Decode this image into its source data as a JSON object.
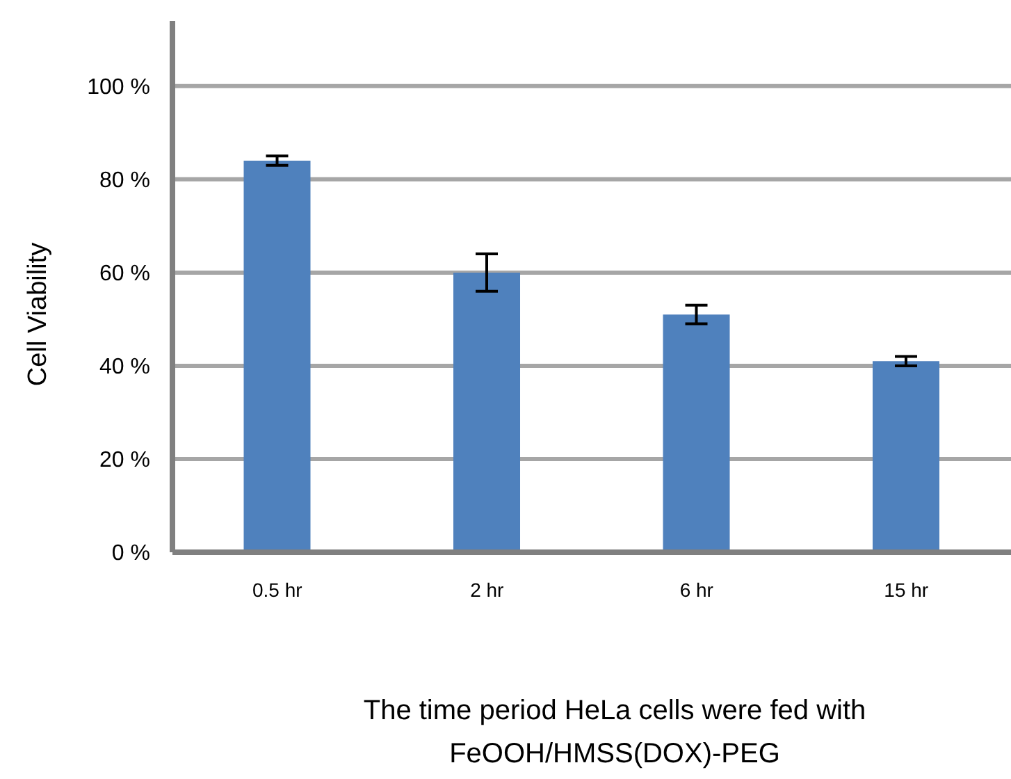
{
  "chart_data": {
    "type": "bar",
    "xlabel": "The time period HeLa cells were fed with\nFeOOH/HMSS(DOX)-PEG",
    "ylabel": "Cell Viability",
    "categories": [
      "0.5 hr",
      "2 hr",
      "6 hr",
      "15 hr"
    ],
    "values": [
      84,
      60,
      51,
      41
    ],
    "errors": [
      1,
      4,
      2,
      1
    ],
    "color": "#4f81bd",
    "ylim": [
      0,
      114
    ],
    "yticks": [
      {
        "value": 0,
        "label": "0 %"
      },
      {
        "value": 20,
        "label": "20 %"
      },
      {
        "value": 40,
        "label": "40 %"
      },
      {
        "value": 60,
        "label": "60 %"
      },
      {
        "value": 80,
        "label": "80 %"
      },
      {
        "value": 100,
        "label": "100 %"
      }
    ],
    "grid": "y",
    "legend": false
  }
}
